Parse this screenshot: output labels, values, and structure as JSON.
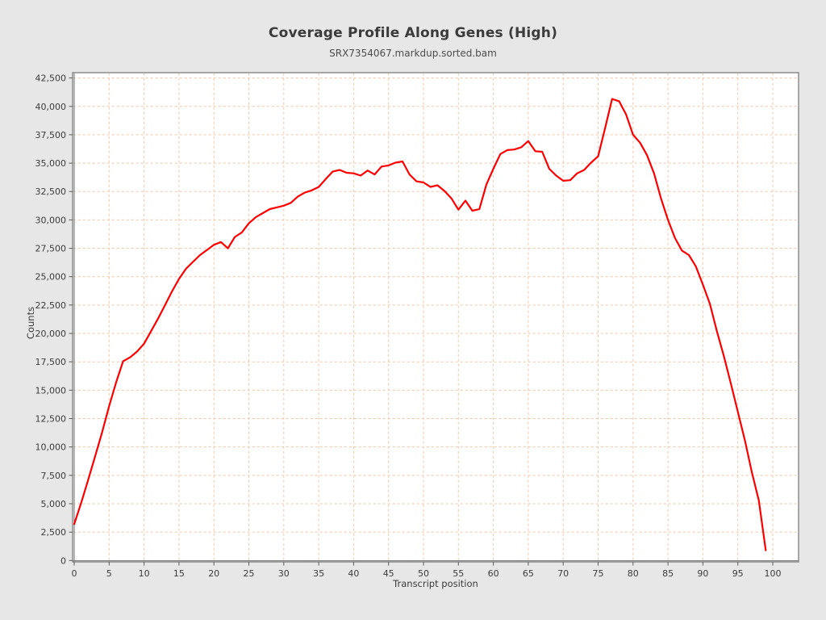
{
  "page": {
    "background": "#e7e7e7"
  },
  "chart_data": {
    "type": "line",
    "title": "Coverage Profile Along Genes (High)",
    "subtitle": "SRX7354067.markdup.sorted.bam",
    "xlabel": "Transcript position",
    "ylabel": "Counts",
    "xlim": [
      0,
      103.7
    ],
    "ylim": [
      0,
      42500
    ],
    "x_ticks": [
      0,
      5,
      10,
      15,
      20,
      25,
      30,
      35,
      40,
      45,
      50,
      55,
      60,
      65,
      70,
      75,
      80,
      85,
      90,
      95,
      100
    ],
    "y_ticks": [
      0,
      2500,
      5000,
      7500,
      10000,
      12500,
      15000,
      17500,
      20000,
      22500,
      25000,
      27500,
      30000,
      32500,
      35000,
      37500,
      40000,
      42500
    ],
    "y_tick_labels": [
      "0",
      "2,500",
      "5,000",
      "7,500",
      "10,000",
      "12,500",
      "15,000",
      "17,500",
      "20,000",
      "22,500",
      "25,000",
      "27,500",
      "30,000",
      "32,500",
      "35,000",
      "37,500",
      "40,000",
      "42,500"
    ],
    "grid": {
      "show": true,
      "style": "dashed"
    },
    "legend": {
      "show": false
    },
    "series": [
      {
        "name": "SRX7354067.markdup.sorted.bam",
        "color": "#fb0000",
        "x_start": 0,
        "x_step": 1,
        "values": [
          3200,
          5100,
          7100,
          9200,
          11300,
          13600,
          15700,
          17550,
          17900,
          18400,
          19100,
          20200,
          21300,
          22500,
          23700,
          24800,
          25700,
          26300,
          26900,
          27350,
          27800,
          28050,
          27500,
          28500,
          28900,
          29700,
          30250,
          30600,
          30950,
          31100,
          31250,
          31500,
          32050,
          32400,
          32600,
          32900,
          33600,
          34250,
          34400,
          34150,
          34100,
          33900,
          34350,
          34000,
          34700,
          34800,
          35050,
          35150,
          34000,
          33400,
          33300,
          32900,
          33050,
          32550,
          31900,
          30900,
          31700,
          30800,
          30950,
          33100,
          34500,
          35800,
          36150,
          36200,
          36400,
          36950,
          36050,
          36000,
          34500,
          33900,
          33450,
          33500,
          34100,
          34400,
          35050,
          35600,
          38100,
          40650,
          40450,
          39300,
          37500,
          36800,
          35700,
          34100,
          31900,
          30000,
          28400,
          27300,
          26900,
          25900,
          24300,
          22600,
          20200,
          18000,
          15600,
          13100,
          10600,
          7800,
          5300,
          900
        ]
      }
    ],
    "colors": {
      "plot_background": "#ffffff",
      "page_background": "#e7e7e7",
      "grid": "#f3c6a5",
      "border": "#7d7d7d",
      "axis": "#6e6e6e",
      "tick": "#5a5a5a",
      "tick_text": "#3c3c3c",
      "title_text": "#3b3b3b",
      "subtitle_text": "#4c4c4c"
    }
  }
}
